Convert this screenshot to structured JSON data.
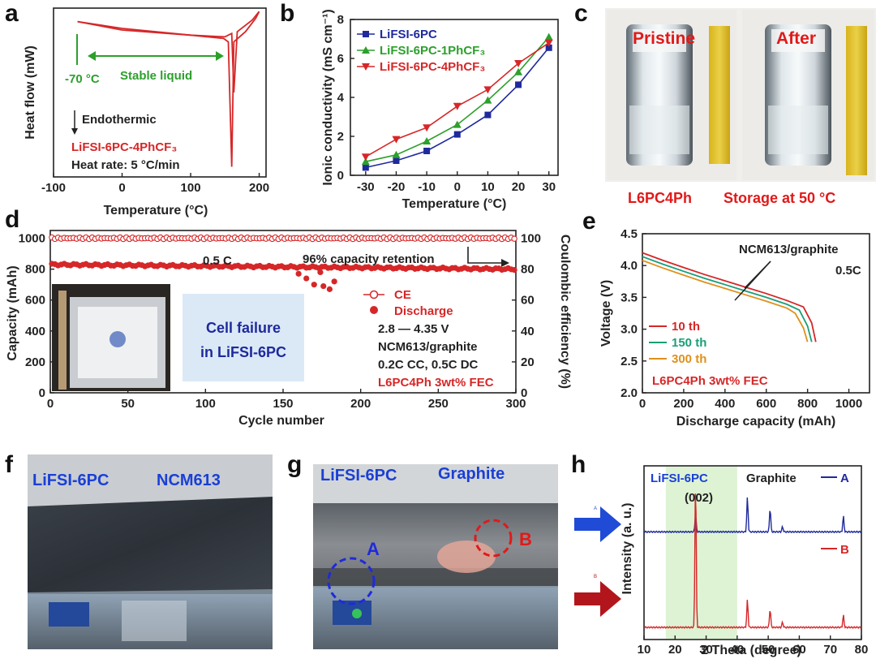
{
  "panels": {
    "a": "a",
    "b": "b",
    "c": "c",
    "d": "d",
    "e": "e",
    "f": "f",
    "g": "g",
    "h": "h"
  },
  "colors": {
    "red": "#d62728",
    "blue": "#1f2a9c",
    "green": "#2ca02c",
    "teal": "#1a9e77",
    "orange": "#e0901b",
    "darkred": "#b22222",
    "photo_text_blue": "#1a3fd6",
    "photo_text_red": "#e11919"
  },
  "chart_data": [
    {
      "id": "a",
      "type": "line",
      "xlabel": "Temperature (°C)",
      "ylabel": "Heat flow (mW)",
      "xlim": [
        -100,
        210
      ],
      "xticks": [
        -100,
        0,
        100,
        200
      ],
      "annotations": {
        "min_temp": "-70 °C",
        "range": "Stable liquid",
        "endo": "Endothermic",
        "sample": "LiFSI-6PC-4PhCF₃",
        "rate": "Heat rate: 5 °C/min"
      },
      "curve_top": [
        [
          -65,
          0.92
        ],
        [
          0,
          0.87
        ],
        [
          100,
          0.84
        ],
        [
          150,
          0.83
        ],
        [
          160,
          0.85
        ],
        [
          163,
          0.5
        ],
        [
          168,
          0.86
        ],
        [
          190,
          0.93
        ],
        [
          200,
          0.98
        ]
      ],
      "curve_bottom": [
        [
          -65,
          0.92
        ],
        [
          0,
          0.88
        ],
        [
          100,
          0.84
        ],
        [
          148,
          0.82
        ],
        [
          155,
          0.8
        ],
        [
          160,
          0.06
        ],
        [
          163,
          0.8
        ],
        [
          180,
          0.86
        ],
        [
          195,
          0.94
        ],
        [
          200,
          0.98
        ]
      ]
    },
    {
      "id": "b",
      "type": "line",
      "xlabel": "Temperature (°C)",
      "ylabel": "Ionic conductivity (mS cm⁻¹)",
      "x": [
        -30,
        -20,
        -10,
        0,
        10,
        20,
        30
      ],
      "xlim": [
        -35,
        33
      ],
      "ylim": [
        0,
        8
      ],
      "yticks": [
        0,
        2,
        4,
        6,
        8
      ],
      "series": [
        {
          "name": "LiFSI-6PC",
          "color": "#1f2a9c",
          "marker": "square",
          "values": [
            0.4,
            0.75,
            1.25,
            2.1,
            3.1,
            4.65,
            6.55
          ]
        },
        {
          "name": "LiFSI-6PC-1PhCF₃",
          "color": "#2ca02c",
          "marker": "triangle-up",
          "values": [
            0.7,
            1.05,
            1.75,
            2.6,
            3.85,
            5.3,
            7.1
          ]
        },
        {
          "name": "LiFSI-6PC-4PhCF₃",
          "color": "#d62728",
          "marker": "triangle-down",
          "values": [
            0.95,
            1.85,
            2.45,
            3.55,
            4.4,
            5.75,
            6.8
          ]
        }
      ]
    },
    {
      "id": "d",
      "type": "scatter",
      "xlabel": "Cycle number",
      "ylabel": "Capacity (mAh)",
      "y2label": "Coulombic efficiency (%)",
      "xlim": [
        0,
        300
      ],
      "xticks": [
        0,
        50,
        100,
        150,
        200,
        250,
        300
      ],
      "ylim": [
        0,
        1050
      ],
      "yticks": [
        0,
        200,
        400,
        600,
        800,
        1000
      ],
      "y2lim": [
        0,
        105
      ],
      "y2ticks": [
        0,
        20,
        40,
        60,
        80,
        100
      ],
      "annotations": {
        "rate": "0.5 C",
        "retention": "96% capacity retention",
        "legend_ce": "CE",
        "legend_discharge": "Discharge",
        "voltage": "2.8 — 4.35 V",
        "cell": "NCM613/graphite",
        "protocol": "0.2C CC, 0.5C DC",
        "electrolyte": "L6PC4Ph  3wt% FEC",
        "failure": "Cell failure in LiFSI-6PC"
      },
      "ce_level": 100,
      "discharge_start": 830,
      "discharge_end": 800,
      "failing_cell_discharge": [
        [
          160,
          770
        ],
        [
          165,
          740
        ],
        [
          170,
          700
        ],
        [
          174,
          780
        ],
        [
          176,
          690
        ],
        [
          180,
          670
        ],
        [
          183,
          720
        ]
      ]
    },
    {
      "id": "e",
      "type": "line",
      "xlabel": "Discharge capacity (mAh)",
      "ylabel": "Voltage (V)",
      "xlim": [
        0,
        1100
      ],
      "xticks": [
        0,
        200,
        400,
        600,
        800,
        1000
      ],
      "ylim": [
        2.0,
        4.5
      ],
      "yticks": [
        2.0,
        2.5,
        3.0,
        3.5,
        4.0,
        4.5
      ],
      "annotations": {
        "cell": "NCM613/graphite",
        "rate": "0.5C",
        "electrolyte": "L6PC4Ph  3wt%  FEC"
      },
      "series": [
        {
          "name": "10 th",
          "color": "#d62728",
          "x": [
            0,
            100,
            200,
            300,
            400,
            500,
            600,
            700,
            780,
            820,
            840
          ],
          "values": [
            4.2,
            4.08,
            3.97,
            3.86,
            3.76,
            3.66,
            3.56,
            3.45,
            3.35,
            3.1,
            2.8
          ]
        },
        {
          "name": "150 th",
          "color": "#1a9e77",
          "x": [
            0,
            100,
            200,
            300,
            400,
            500,
            600,
            700,
            760,
            800,
            820
          ],
          "values": [
            4.14,
            4.02,
            3.91,
            3.8,
            3.7,
            3.6,
            3.5,
            3.39,
            3.3,
            3.05,
            2.8
          ]
        },
        {
          "name": "300 th",
          "color": "#e0901b",
          "x": [
            0,
            100,
            200,
            300,
            400,
            500,
            600,
            700,
            740,
            780,
            800
          ],
          "values": [
            4.08,
            3.96,
            3.85,
            3.74,
            3.64,
            3.54,
            3.44,
            3.33,
            3.25,
            3.02,
            2.8
          ]
        }
      ]
    },
    {
      "id": "h",
      "type": "line",
      "xlabel": "2 Theta (degree)",
      "ylabel": "Intensity (a. u.)",
      "xlim": [
        10,
        80
      ],
      "xticks": [
        10,
        20,
        30,
        40,
        50,
        60,
        70,
        80
      ],
      "annotations": {
        "electrolyte": "LiFSI-6PC",
        "material": "Graphite",
        "peak": "(002)"
      },
      "highlight_range": [
        17,
        40
      ],
      "series": [
        {
          "name": "A",
          "color": "#1f2a9c",
          "baseline": 0.62,
          "peaks": [
            [
              26.6,
              0.1
            ],
            [
              43.3,
              0.2
            ],
            [
              50.6,
              0.14
            ],
            [
              54.6,
              0.03
            ],
            [
              74.2,
              0.09
            ]
          ]
        },
        {
          "name": "B",
          "color": "#d62728",
          "baseline": 0.07,
          "peaks": [
            [
              26.6,
              0.88
            ],
            [
              43.3,
              0.16
            ],
            [
              50.6,
              0.11
            ],
            [
              54.6,
              0.03
            ],
            [
              74.2,
              0.07
            ]
          ]
        }
      ]
    }
  ],
  "photos": {
    "c": {
      "left_caption": "Pristine",
      "right_caption": "After",
      "sample": "L6PC4Ph",
      "condition": "Storage at 50 °C"
    },
    "f": {
      "label1": "LiFSI-6PC",
      "label2": "NCM613"
    },
    "g": {
      "label1": "LiFSI-6PC",
      "label2": "Graphite",
      "circle_a": "A",
      "circle_b": "B"
    },
    "h_arrows": {
      "a": "A",
      "b": "B"
    }
  }
}
